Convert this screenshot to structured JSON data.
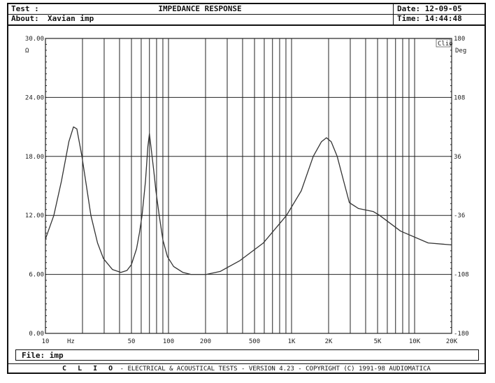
{
  "header": {
    "test_label": "Test :",
    "title": "IMPEDANCE RESPONSE",
    "about_label": "About:",
    "about_value": "Xavian imp",
    "date": "Date: 12-09-05",
    "time": "Time: 14:44:48"
  },
  "file": {
    "label": "File:",
    "value": "imp"
  },
  "footer": {
    "brand": "C L I O",
    "text": "- ELECTRICAL & ACOUSTICAL TESTS - VERSION 4.23 - COPYRIGHT (C) 1991-98 AUDIOMATICA"
  },
  "chart_data": {
    "type": "line",
    "title": "IMPEDANCE RESPONSE",
    "xlabel": "Hz",
    "ylabel": "Ω",
    "y2label": "Deg",
    "xscale": "log",
    "xlim": [
      10,
      20000
    ],
    "ylim": [
      0,
      30
    ],
    "y2lim": [
      -180,
      180
    ],
    "grid": true,
    "logo": "Clio",
    "xticks": [
      {
        "v": 10,
        "l": "10"
      },
      {
        "v": 50,
        "l": "50"
      },
      {
        "v": 100,
        "l": "100"
      },
      {
        "v": 200,
        "l": "200"
      },
      {
        "v": 500,
        "l": "500"
      },
      {
        "v": 1000,
        "l": "1K"
      },
      {
        "v": 2000,
        "l": "2K"
      },
      {
        "v": 5000,
        "l": "5K"
      },
      {
        "v": 10000,
        "l": "10K"
      },
      {
        "v": 20000,
        "l": "20K"
      }
    ],
    "yticks": [
      "0.00",
      "6.00",
      "12.00",
      "18.00",
      "24.00",
      "30.00"
    ],
    "y2ticks": [
      "-180",
      "-108",
      "-36",
      "36",
      "108",
      "180"
    ],
    "series": [
      {
        "color": "#333333",
        "points": [
          [
            10,
            9.6
          ],
          [
            11.7,
            12
          ],
          [
            13.5,
            15.5
          ],
          [
            15.5,
            19.5
          ],
          [
            16.9,
            21.0
          ],
          [
            18,
            20.8
          ],
          [
            19.8,
            18
          ],
          [
            23.4,
            12
          ],
          [
            26.5,
            9.2
          ],
          [
            29.6,
            7.6
          ],
          [
            35,
            6.5
          ],
          [
            41,
            6.2
          ],
          [
            46,
            6.4
          ],
          [
            50,
            7.0
          ],
          [
            55,
            8.6
          ],
          [
            58,
            10.2
          ],
          [
            61,
            12
          ],
          [
            65,
            15.5
          ],
          [
            68,
            19
          ],
          [
            70,
            20.3
          ],
          [
            72,
            19
          ],
          [
            76,
            16.5
          ],
          [
            79,
            14.5
          ],
          [
            84,
            12
          ],
          [
            90,
            9.5
          ],
          [
            98,
            7.8
          ],
          [
            110,
            6.8
          ],
          [
            131,
            6.2
          ],
          [
            152,
            6.0
          ],
          [
            203,
            6.0
          ],
          [
            263,
            6.3
          ],
          [
            380,
            7.4
          ],
          [
            590,
            9.2
          ],
          [
            910,
            12
          ],
          [
            1200,
            14.5
          ],
          [
            1500,
            18
          ],
          [
            1750,
            19.5
          ],
          [
            1920,
            19.9
          ],
          [
            2100,
            19.5
          ],
          [
            2350,
            18
          ],
          [
            2650,
            15.5
          ],
          [
            2950,
            13.3
          ],
          [
            3500,
            12.7
          ],
          [
            4600,
            12.4
          ],
          [
            5200,
            12.0
          ],
          [
            7700,
            10.4
          ],
          [
            12900,
            9.2
          ],
          [
            20000,
            9.0
          ]
        ]
      }
    ]
  }
}
